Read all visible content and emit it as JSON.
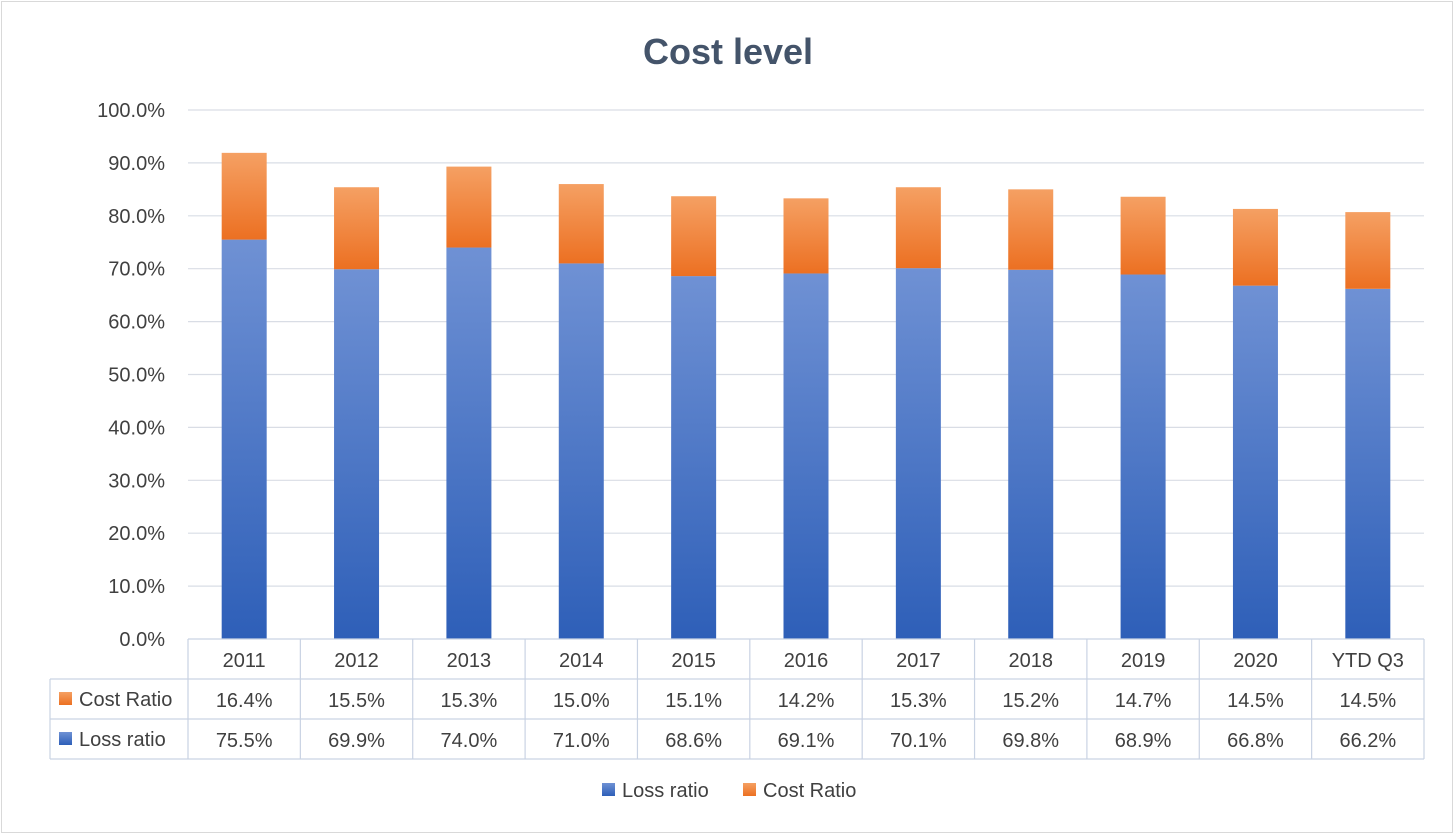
{
  "chart_data": {
    "type": "bar",
    "stacked": true,
    "title": "Cost level",
    "categories": [
      "2011",
      "2012",
      "2013",
      "2014",
      "2015",
      "2016",
      "2017",
      "2018",
      "2019",
      "2020",
      "YTD Q3"
    ],
    "series": [
      {
        "name": "Loss ratio",
        "color": "#4472c4",
        "values": [
          75.5,
          69.9,
          74.0,
          71.0,
          68.6,
          69.1,
          70.1,
          69.8,
          68.9,
          66.8,
          66.2
        ],
        "labels": [
          "75.5%",
          "69.9%",
          "74.0%",
          "71.0%",
          "68.6%",
          "69.1%",
          "70.1%",
          "69.8%",
          "68.9%",
          "66.8%",
          "66.2%"
        ]
      },
      {
        "name": "Cost Ratio",
        "color": "#ed7d31",
        "values": [
          16.4,
          15.5,
          15.3,
          15.0,
          15.1,
          14.2,
          15.3,
          15.2,
          14.7,
          14.5,
          14.5
        ],
        "labels": [
          "16.4%",
          "15.5%",
          "15.3%",
          "15.0%",
          "15.1%",
          "14.2%",
          "15.3%",
          "15.2%",
          "14.7%",
          "14.5%",
          "14.5%"
        ]
      }
    ],
    "ylim": [
      0,
      100
    ],
    "yticks": [
      "0.0%",
      "10.0%",
      "20.0%",
      "30.0%",
      "40.0%",
      "50.0%",
      "60.0%",
      "70.0%",
      "80.0%",
      "90.0%",
      "100.0%"
    ],
    "grid": true,
    "data_table": true,
    "data_table_row_order": [
      "Cost Ratio",
      "Loss ratio"
    ],
    "legend_position": "bottom",
    "legend_order": [
      "Loss ratio",
      "Cost Ratio"
    ]
  }
}
